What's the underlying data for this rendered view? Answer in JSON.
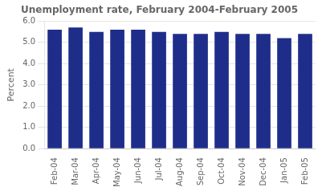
{
  "chart_data": {
    "type": "bar",
    "title": "Unemployment rate, February 2004-February 2005",
    "ylabel": "Percent",
    "categories": [
      "Feb-04",
      "Mar-04",
      "Apr-04",
      "May-04",
      "Jun-04",
      "Jul-04",
      "Aug-04",
      "Sep-04",
      "Oct-04",
      "Nov-04",
      "Dec-04",
      "Jan-05",
      "Feb-05"
    ],
    "values": [
      5.6,
      5.7,
      5.5,
      5.6,
      5.6,
      5.5,
      5.4,
      5.4,
      5.5,
      5.4,
      5.4,
      5.2,
      5.4
    ],
    "color": "#1F2D8A",
    "ylim": [
      0.0,
      6.0
    ],
    "yticks": [
      {
        "value": 0,
        "label": "0.0"
      },
      {
        "value": 1,
        "label": "1.0"
      },
      {
        "value": 2,
        "label": "2.0"
      },
      {
        "value": 3,
        "label": "3.0"
      },
      {
        "value": 4,
        "label": "4.0"
      },
      {
        "value": 5,
        "label": "5.0"
      },
      {
        "value": 6,
        "label": "6.0"
      }
    ],
    "grid": true
  }
}
